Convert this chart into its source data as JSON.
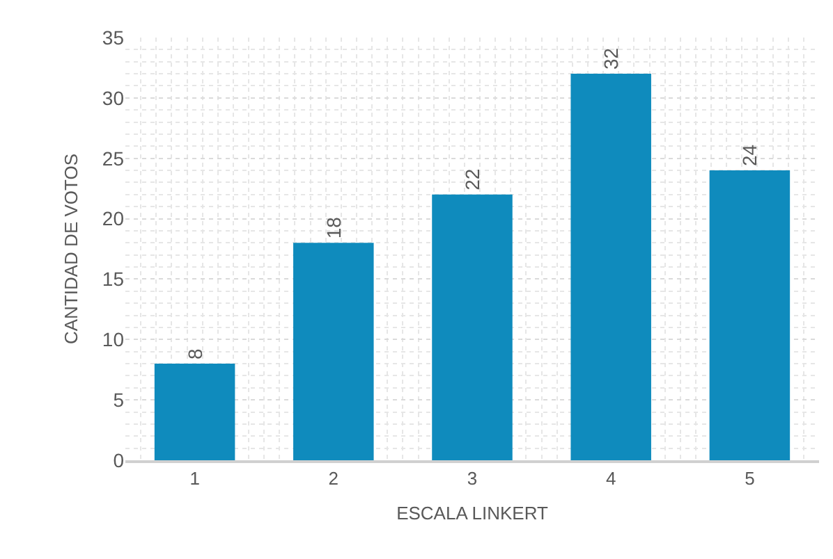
{
  "chart_data": {
    "type": "bar",
    "categories": [
      "1",
      "2",
      "3",
      "4",
      "5"
    ],
    "values": [
      8,
      18,
      22,
      32,
      24
    ],
    "color": "#0f8bbd",
    "xlabel": "ESCALA LINKERT",
    "ylabel": "CANTIDAD DE VOTOS",
    "ylim": [
      0,
      35
    ],
    "yticks": [
      0,
      5,
      10,
      15,
      20,
      25,
      30,
      35
    ],
    "grid": true,
    "data_labels": true
  }
}
